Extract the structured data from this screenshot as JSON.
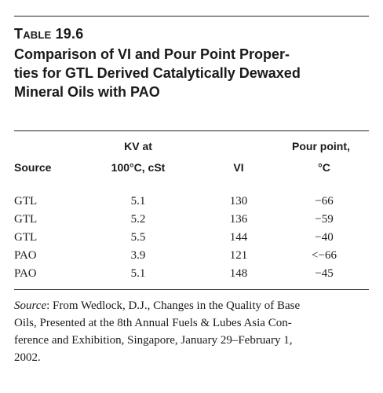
{
  "table": {
    "label": "Table 19.6",
    "title_lines": [
      "Comparison of VI and Pour Point Proper-",
      "ties for GTL Derived Catalytically Dewaxed",
      "Mineral Oils with PAO"
    ],
    "columns": [
      {
        "line1": "",
        "line2": "Source"
      },
      {
        "line1": "KV at",
        "line2": "100°C, cSt"
      },
      {
        "line1": "",
        "line2": "VI"
      },
      {
        "line1": "Pour point,",
        "line2": "°C"
      }
    ],
    "rows": [
      [
        "GTL",
        "5.1",
        "130",
        "−66"
      ],
      [
        "GTL",
        "5.2",
        "136",
        "−59"
      ],
      [
        "GTL",
        "5.5",
        "144",
        "−40"
      ],
      [
        "PAO",
        "3.9",
        "121",
        "<−66"
      ],
      [
        "PAO",
        "5.1",
        "148",
        "−45"
      ]
    ]
  },
  "source_note": {
    "lead": "Source",
    "lines": [
      ": From Wedlock, D.J., Changes in the Quality of Base",
      "Oils, Presented at the 8th Annual Fuels & Lubes Asia Con-",
      "ference and Exhibition, Singapore, January 29–February 1,",
      "2002."
    ]
  }
}
